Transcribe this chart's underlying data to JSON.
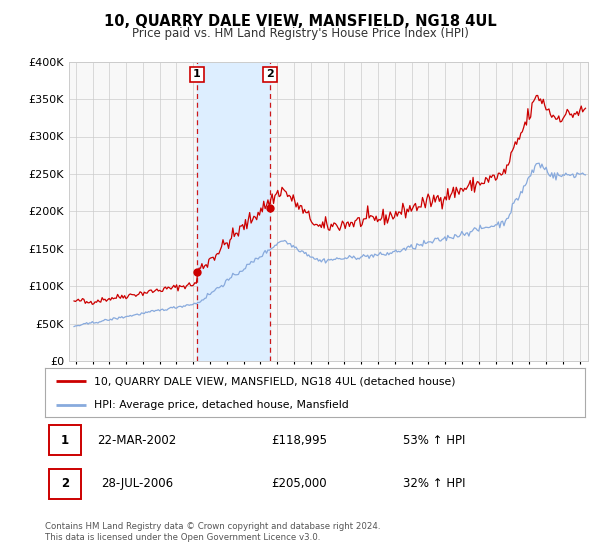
{
  "title": "10, QUARRY DALE VIEW, MANSFIELD, NG18 4UL",
  "subtitle": "Price paid vs. HM Land Registry's House Price Index (HPI)",
  "ylim": [
    0,
    400000
  ],
  "yticks": [
    0,
    50000,
    100000,
    150000,
    200000,
    250000,
    300000,
    350000,
    400000
  ],
  "ytick_labels": [
    "£0",
    "£50K",
    "£100K",
    "£150K",
    "£200K",
    "£250K",
    "£300K",
    "£350K",
    "£400K"
  ],
  "xlim_start": 1994.6,
  "xlim_end": 2025.5,
  "xticks": [
    1995,
    1996,
    1997,
    1998,
    1999,
    2000,
    2001,
    2002,
    2003,
    2004,
    2005,
    2006,
    2007,
    2008,
    2009,
    2010,
    2011,
    2012,
    2013,
    2014,
    2015,
    2016,
    2017,
    2018,
    2019,
    2020,
    2021,
    2022,
    2023,
    2024,
    2025
  ],
  "sale1_x": 2002.22,
  "sale1_y": 118995,
  "sale2_x": 2006.57,
  "sale2_y": 205000,
  "shade_start": 2002.22,
  "shade_end": 2006.57,
  "price_line_color": "#cc0000",
  "hpi_line_color": "#88aadd",
  "shade_color": "#ddeeff",
  "grid_color": "#cccccc",
  "plot_bg_color": "#f8f8f8",
  "legend1_label": "10, QUARRY DALE VIEW, MANSFIELD, NG18 4UL (detached house)",
  "legend2_label": "HPI: Average price, detached house, Mansfield",
  "sale1_date": "22-MAR-2002",
  "sale1_price": "£118,995",
  "sale1_hpi": "53% ↑ HPI",
  "sale2_date": "28-JUL-2006",
  "sale2_price": "£205,000",
  "sale2_hpi": "32% ↑ HPI",
  "footer1": "Contains HM Land Registry data © Crown copyright and database right 2024.",
  "footer2": "This data is licensed under the Open Government Licence v3.0."
}
